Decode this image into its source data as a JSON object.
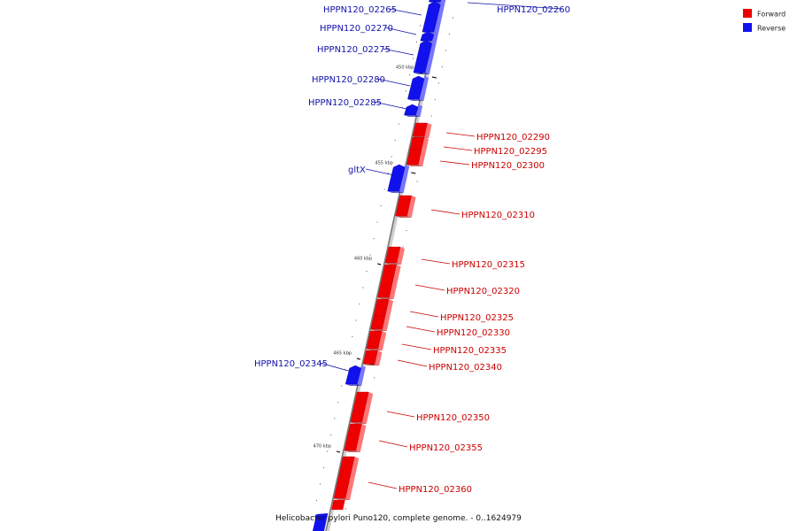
{
  "caption": "Helicobacter pylori Puno120, complete genome. - 0..1624979",
  "colors": {
    "forward": "#ee0000",
    "forward_light": "#ff7777",
    "forward_dark": "#aa0000",
    "forward_text": "#cc0000",
    "reverse": "#1111ee",
    "reverse_light": "#7777ff",
    "reverse_dark": "#0000aa",
    "reverse_text": "#1111aa",
    "backbone": "#888888"
  },
  "legend": [
    {
      "label": "Forward",
      "strand": "forward"
    },
    {
      "label": "Reverse",
      "strand": "reverse"
    }
  ],
  "ticks": [
    {
      "label": "450 kbp"
    },
    {
      "label": "455 kbp"
    },
    {
      "label": "460 kbp"
    },
    {
      "label": "465 kbp"
    },
    {
      "label": "470 kbp"
    }
  ],
  "genes": [
    {
      "name": "HPPN120_02260",
      "strand": "reverse"
    },
    {
      "name": "HPPN120_02265",
      "strand": "reverse"
    },
    {
      "name": "HPPN120_02270",
      "strand": "reverse"
    },
    {
      "name": "HPPN120_02275",
      "strand": "reverse"
    },
    {
      "name": "HPPN120_02280",
      "strand": "reverse"
    },
    {
      "name": "HPPN120_02285",
      "strand": "reverse"
    },
    {
      "name": "HPPN120_02290",
      "strand": "forward"
    },
    {
      "name": "HPPN120_02295",
      "strand": "forward"
    },
    {
      "name": "HPPN120_02300",
      "strand": "forward"
    },
    {
      "name": "gltX",
      "strand": "reverse"
    },
    {
      "name": "HPPN120_02310",
      "strand": "forward"
    },
    {
      "name": "HPPN120_02315",
      "strand": "forward"
    },
    {
      "name": "HPPN120_02320",
      "strand": "forward"
    },
    {
      "name": "HPPN120_02325",
      "strand": "forward"
    },
    {
      "name": "HPPN120_02330",
      "strand": "forward"
    },
    {
      "name": "HPPN120_02335",
      "strand": "forward"
    },
    {
      "name": "HPPN120_02340",
      "strand": "forward"
    },
    {
      "name": "HPPN120_02345",
      "strand": "reverse"
    },
    {
      "name": "HPPN120_02350",
      "strand": "forward"
    },
    {
      "name": "HPPN120_02355",
      "strand": "forward"
    },
    {
      "name": "HPPN120_02360",
      "strand": "forward"
    }
  ]
}
